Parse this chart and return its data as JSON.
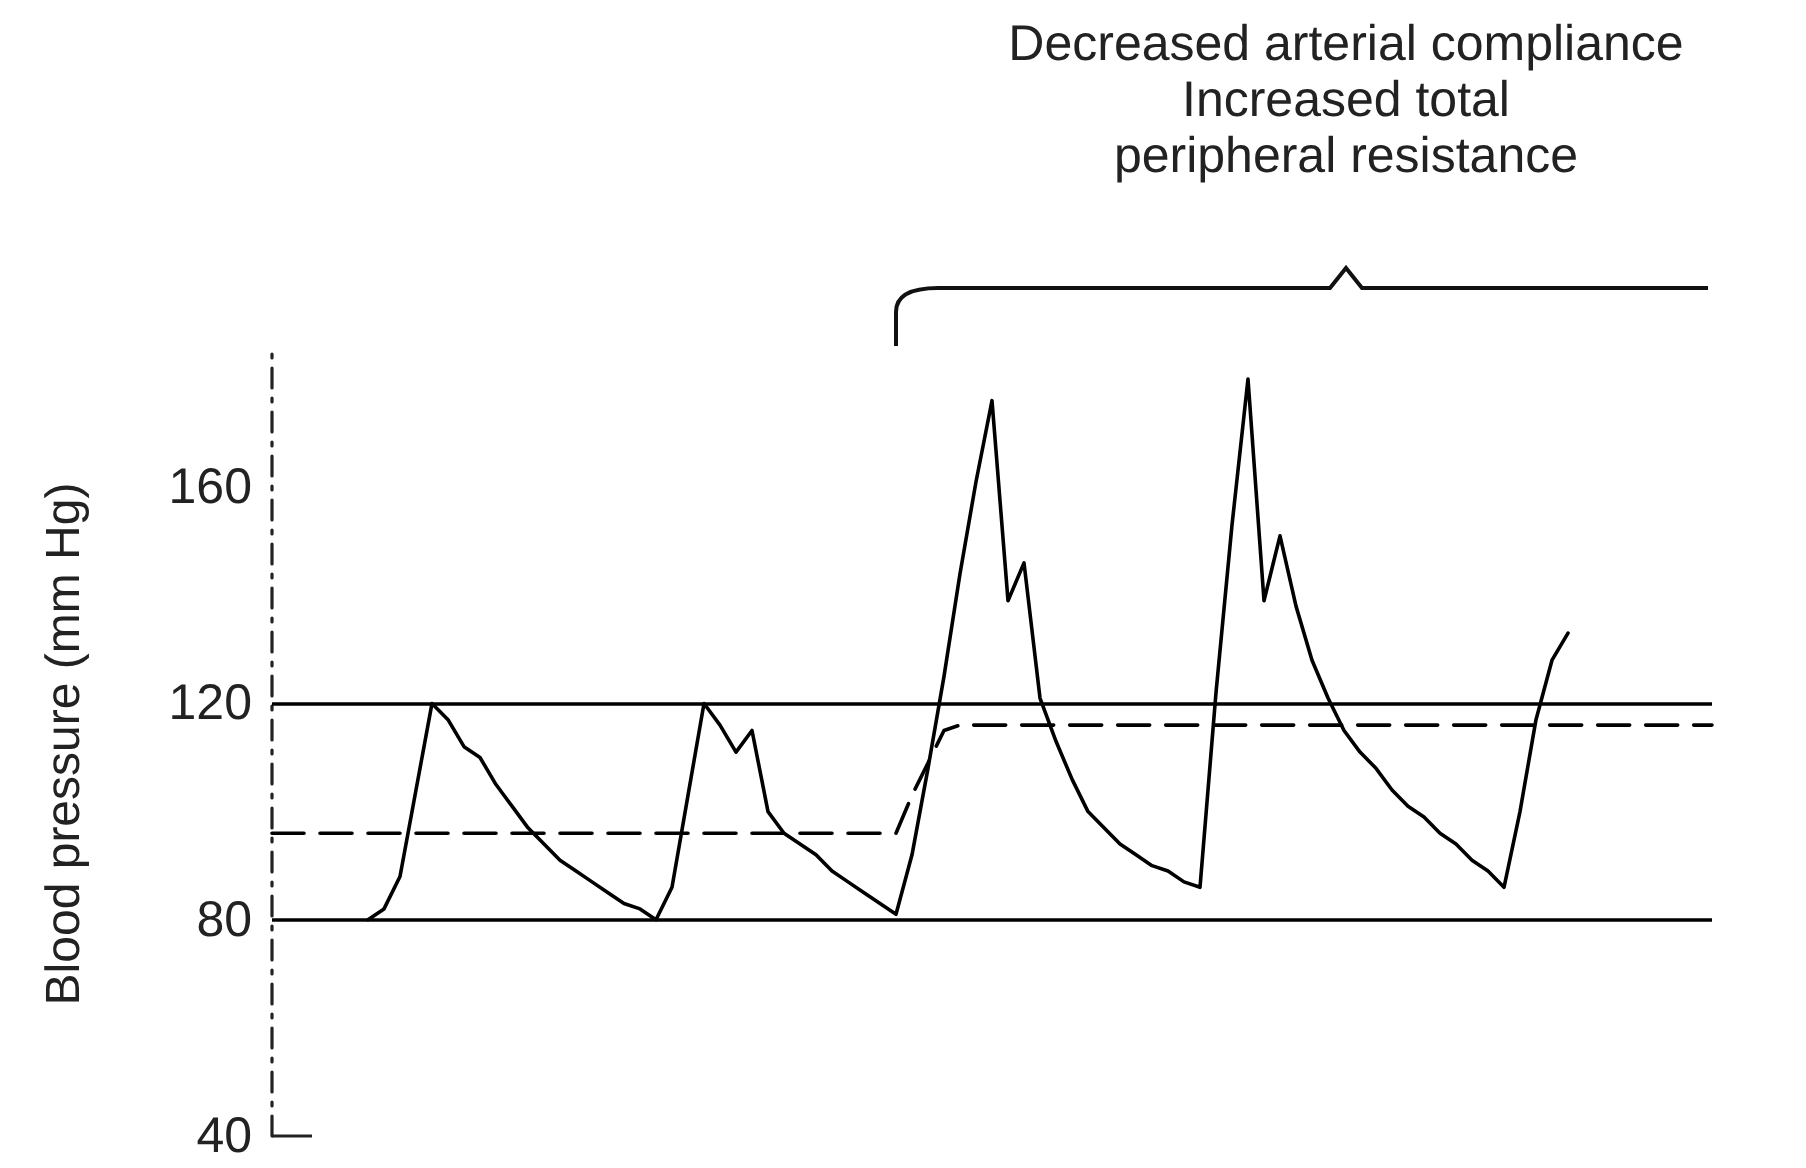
{
  "chart_data": {
    "type": "line",
    "ylabel": "Blood pressure (mm Hg)",
    "annotations": [
      "Decreased arterial compliance",
      "Increased total",
      "peripheral resistance"
    ],
    "categories": [
      null,
      null,
      null,
      null,
      null,
      null,
      null,
      null,
      null,
      null,
      null,
      null,
      null,
      null,
      null,
      null,
      null,
      null,
      null,
      null,
      null,
      null,
      null,
      null,
      null,
      null,
      null,
      null,
      null,
      null,
      null,
      null,
      null,
      null,
      null,
      null,
      null,
      null,
      null,
      null,
      null,
      null,
      null,
      null,
      null,
      null,
      null,
      null,
      null,
      null,
      null,
      null,
      null,
      null,
      null,
      null,
      null,
      null,
      null,
      null,
      null,
      null,
      null,
      null,
      null,
      null,
      null,
      null,
      null,
      null,
      null,
      null,
      null,
      null,
      null,
      null,
      null,
      null,
      null,
      null,
      null,
      null,
      null,
      null,
      null,
      null,
      null,
      null,
      null,
      null,
      null
    ],
    "series": [
      {
        "color": "#000000",
        "line_style": "solid",
        "values": [
          null,
          null,
          null,
          null,
          null,
          null,
          80,
          82,
          88,
          104,
          120,
          117,
          112,
          110,
          105,
          101,
          97,
          94,
          91,
          89,
          87,
          85,
          83,
          82,
          80,
          86,
          103,
          120,
          116,
          111,
          115,
          100,
          96,
          94,
          92,
          89,
          87,
          85,
          83,
          81,
          92,
          108,
          125,
          144,
          161,
          176,
          139,
          146,
          121,
          113,
          106,
          100,
          97,
          94,
          92,
          90,
          89,
          87,
          86,
          122,
          153,
          180,
          139,
          151,
          138,
          128,
          121,
          115,
          111,
          108,
          104,
          101,
          99,
          96,
          94,
          91,
          89,
          86,
          100,
          117,
          128,
          133,
          null,
          null,
          null,
          null,
          null,
          null,
          null,
          null,
          null
        ]
      },
      {
        "color": "#000000",
        "line_style": "dashed",
        "values": [
          96,
          96,
          96,
          96,
          96,
          96,
          96,
          96,
          96,
          96,
          96,
          96,
          96,
          96,
          96,
          96,
          96,
          96,
          96,
          96,
          96,
          96,
          96,
          96,
          96,
          96,
          96,
          96,
          96,
          96,
          96,
          96,
          96,
          96,
          96,
          96,
          96,
          96,
          96,
          96,
          103,
          109,
          115,
          116,
          116,
          116,
          116,
          116,
          116,
          116,
          116,
          116,
          116,
          116,
          116,
          116,
          116,
          116,
          116,
          116,
          116,
          116,
          116,
          116,
          116,
          116,
          116,
          116,
          116,
          116,
          116,
          116,
          116,
          116,
          116,
          116,
          116,
          116,
          116,
          116,
          116,
          116,
          116,
          116,
          116,
          116,
          116,
          116,
          116,
          116,
          116
        ]
      }
    ],
    "ref_lines": [
      {
        "axis": "y",
        "value": 120,
        "label": null,
        "color": "#000000"
      },
      {
        "axis": "y",
        "value": 80,
        "label": null,
        "color": "#000000"
      }
    ],
    "ylim": [
      40,
      185
    ],
    "yticks": [
      40,
      80,
      120,
      160
    ],
    "grid": false,
    "tick_labels": "y"
  }
}
